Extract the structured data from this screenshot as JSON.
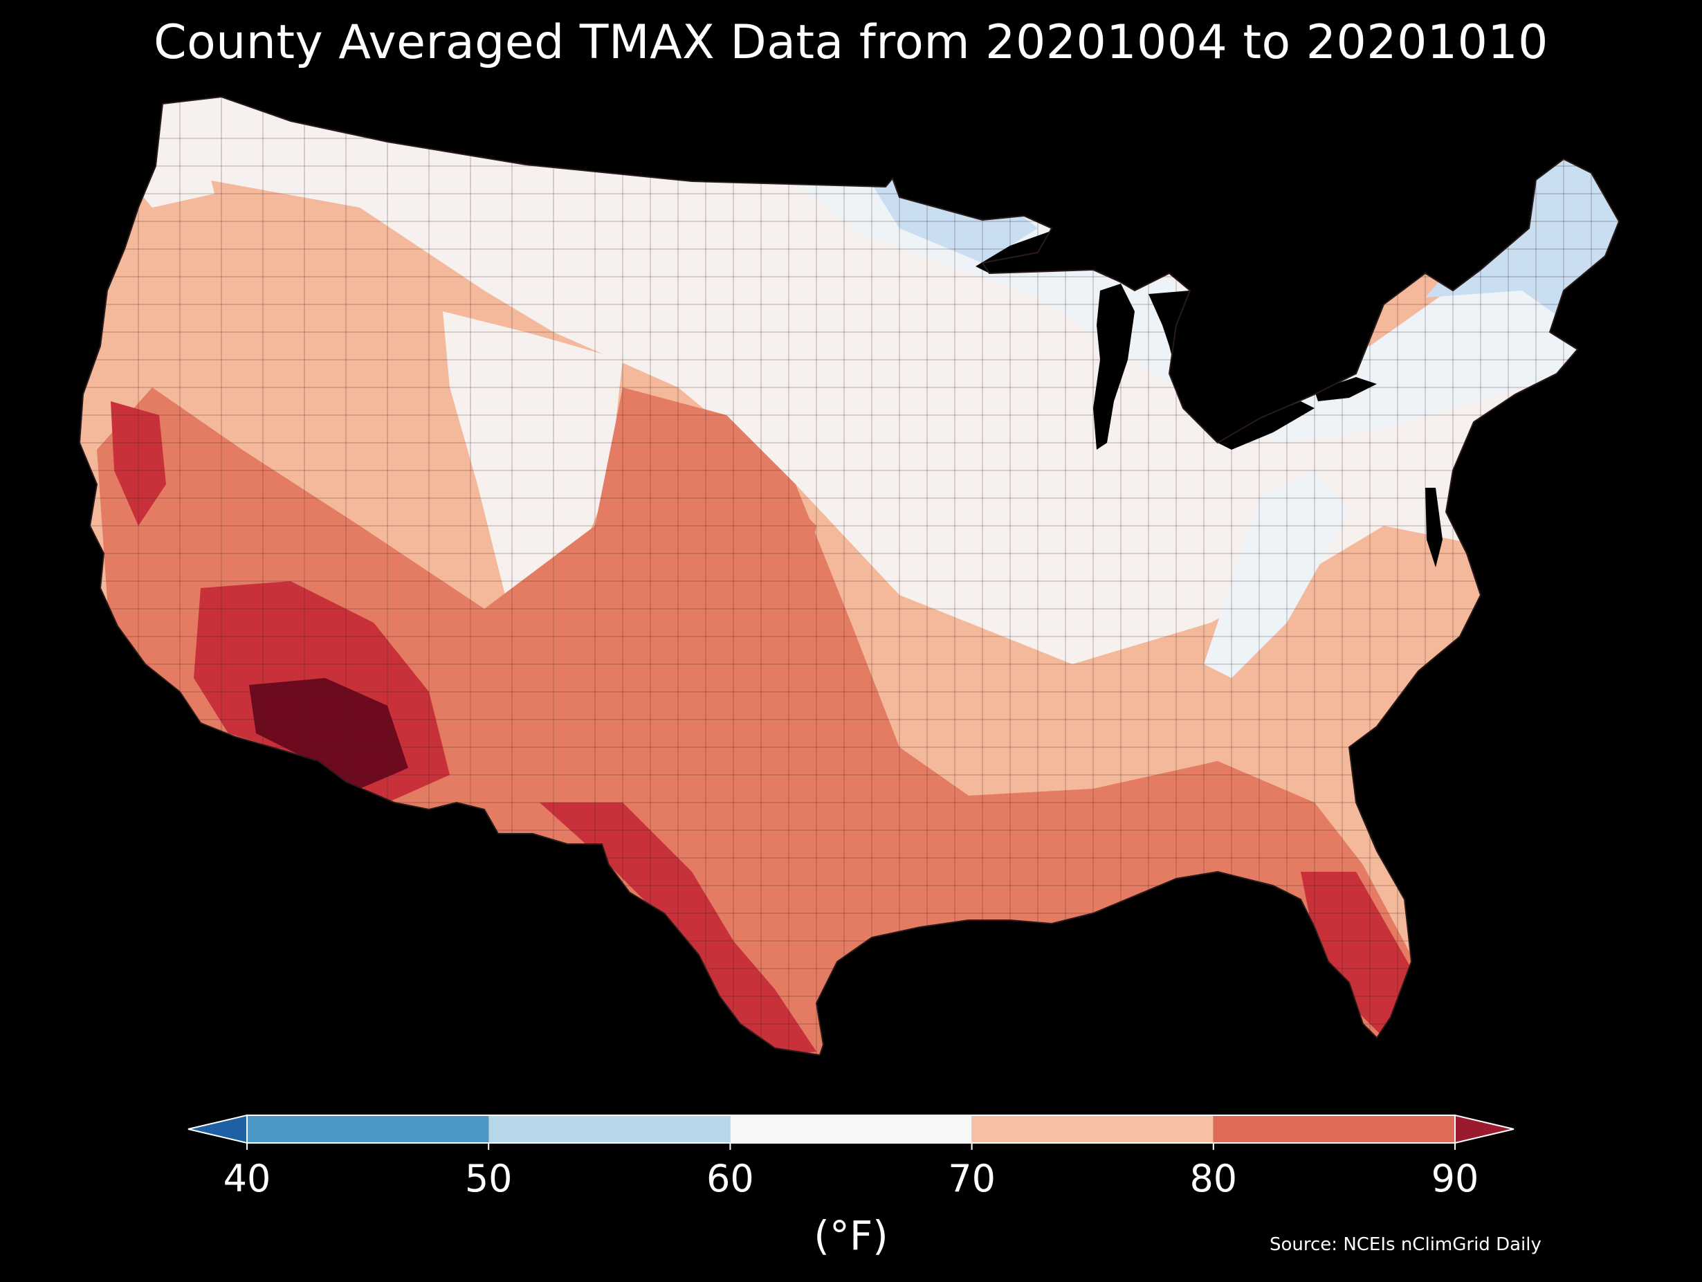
{
  "title": "County Averaged TMAX Data from 20201004 to 20201010",
  "colorbar": {
    "label": "(°F)",
    "ticks": [
      "40",
      "50",
      "60",
      "70",
      "80",
      "90"
    ],
    "bins": [
      {
        "from": 40,
        "to": 50,
        "color": "#4b98c8"
      },
      {
        "from": 50,
        "to": 60,
        "color": "#b6d6e9"
      },
      {
        "from": 60,
        "to": 70,
        "color": "#f7f7f7"
      },
      {
        "from": 70,
        "to": 80,
        "color": "#f7bfa4"
      },
      {
        "from": 80,
        "to": 90,
        "color": "#dd6b58"
      }
    ],
    "extend_low_color": "#1f5fa3",
    "extend_high_color": "#9a1b2e"
  },
  "source": "Source: NCEIs nClimGrid Daily",
  "map": {
    "region": "Contiguous United States",
    "variable": "TMAX",
    "units": "°F",
    "background": "#000000",
    "colors": {
      "cold": "#c9def0",
      "cool": "#eef3f8",
      "neutral": "#f6f1ee",
      "warm": "#f4b99b",
      "hot": "#e47c64",
      "very_hot": "#c8313a",
      "extreme": "#6e0a1e"
    }
  }
}
